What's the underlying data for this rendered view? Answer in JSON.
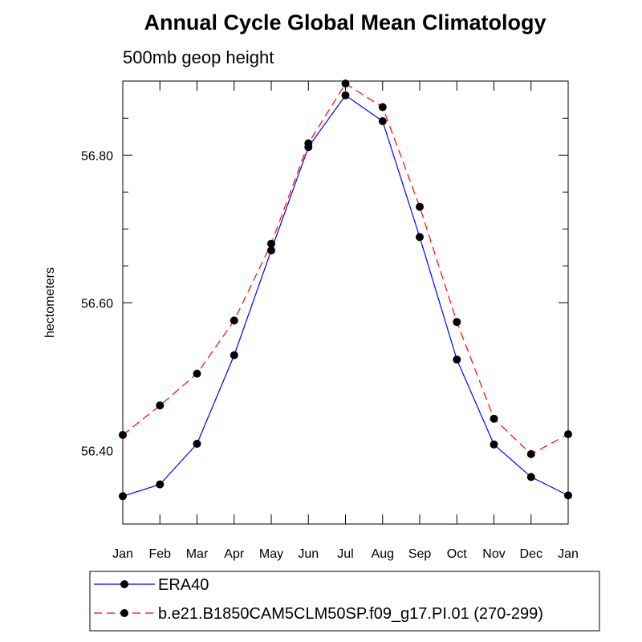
{
  "chart_data": {
    "type": "line",
    "title": "Annual Cycle Global Mean Climatology",
    "subtitle": "500mb geop height",
    "xlabel": "",
    "ylabel": "hectometers",
    "categories": [
      "Jan",
      "Feb",
      "Mar",
      "Apr",
      "May",
      "Jun",
      "Jul",
      "Aug",
      "Sep",
      "Oct",
      "Nov",
      "Dec",
      "Jan"
    ],
    "ylim": [
      56.3,
      56.9
    ],
    "yticks": [
      56.4,
      56.6,
      56.8
    ],
    "ytick_labels": [
      "56.40",
      "56.60",
      "56.80"
    ],
    "series": [
      {
        "name": "ERA40",
        "color": "#0000ff",
        "dash": "solid",
        "values": [
          56.338,
          56.354,
          56.409,
          56.529,
          56.671,
          56.811,
          56.881,
          56.846,
          56.689,
          56.523,
          56.408,
          56.364,
          56.339
        ]
      },
      {
        "name": "b.e21.B1850CAM5CLM50SP.f09_g17.PI.01 (270-299)",
        "color": "#ff0000",
        "dash": "dashed",
        "values": [
          56.421,
          56.461,
          56.504,
          56.576,
          56.68,
          56.816,
          56.897,
          56.865,
          56.73,
          56.574,
          56.443,
          56.395,
          56.422
        ]
      }
    ],
    "grid": false,
    "legend_position": "bottom"
  }
}
